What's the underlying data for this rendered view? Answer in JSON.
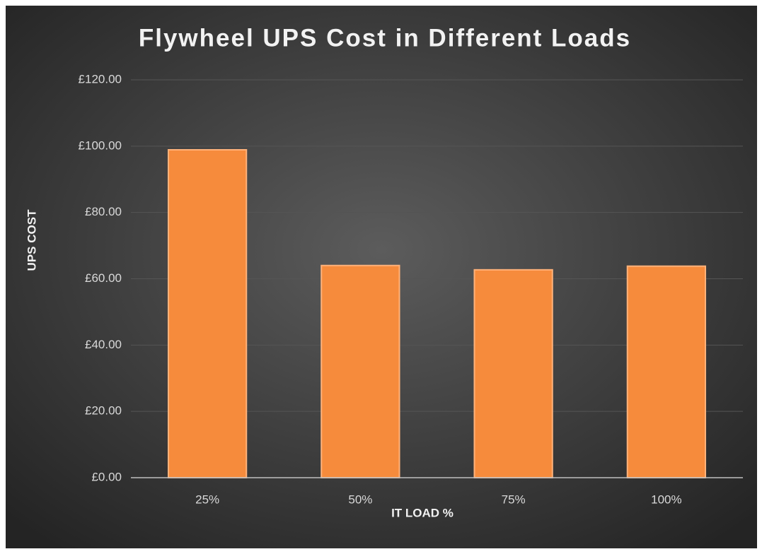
{
  "chart_data": {
    "type": "bar",
    "title": "Flywheel UPS Cost in Different Loads",
    "x_label": "IT LOAD %",
    "y_label": "UPS COST",
    "categories": [
      "25%",
      "50%",
      "75%",
      "100%"
    ],
    "values": [
      98.9,
      64,
      62.7,
      63.8
    ],
    "color": "#f68b3c",
    "ylim": [
      0,
      120
    ],
    "yticks": [
      {
        "value": 0,
        "label": "£0.00"
      },
      {
        "value": 20,
        "label": "£20.00"
      },
      {
        "value": 40,
        "label": "£40.00"
      },
      {
        "value": 60,
        "label": "£60.00"
      },
      {
        "value": 80,
        "label": "£80.00"
      },
      {
        "value": 100,
        "label": "£100.00"
      },
      {
        "value": 120,
        "label": "£120.00"
      }
    ],
    "grid": true
  }
}
